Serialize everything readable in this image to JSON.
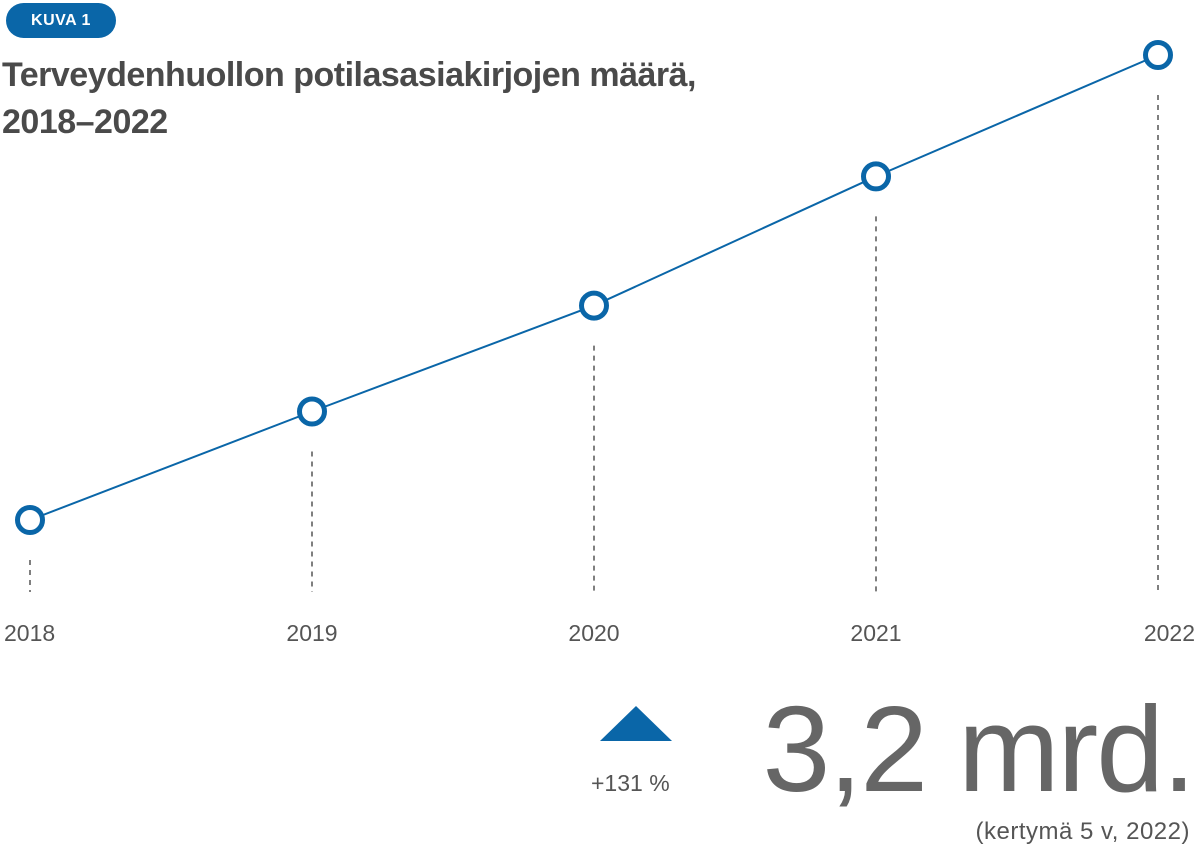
{
  "badge": "KUVA 1",
  "title_line1": "Terveydenhuollon potilasasiakirjojen määrä,",
  "title_line2": "2018–2022",
  "colors": {
    "accent": "#0a66a8",
    "title": "#4a4a4a",
    "text": "#555555",
    "value": "#666666",
    "guide": "#555555"
  },
  "chart_data": {
    "type": "line",
    "title": "Terveydenhuollon potilasasiakirjojen määrä, 2018–2022",
    "xlabel": "",
    "ylabel": "",
    "x": [
      "2018",
      "2019",
      "2020",
      "2021",
      "2022"
    ],
    "series": [
      {
        "values": [
          1,
          1.42,
          1.83,
          2.33,
          2.8
        ]
      }
    ],
    "ylim": [
      1,
      2.8
    ],
    "y_axis_shown": false,
    "grid": "dashed vertical guides below each point",
    "legend": "none"
  },
  "summary": {
    "arrow_icon": "triangle-up-icon",
    "change": "+131 %",
    "value": "3,2 mrd.",
    "note": "(kertymä 5 v, 2022)"
  }
}
